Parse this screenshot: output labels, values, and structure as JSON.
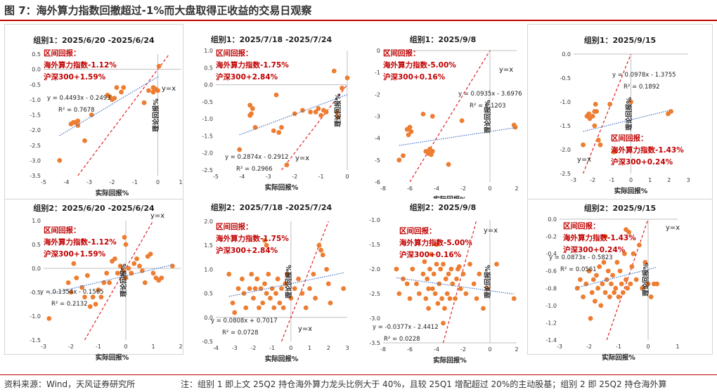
{
  "figure_title": "图 7：海外算力指数回撤超过-1%而大盘取得正收益的交易日观察",
  "source": "资料来源：Wind，天风证券研究所",
  "note": "注：组别 1 即上文 25Q2 持仓海外算力龙头比例大于 40%，且较 25Q1 增配超过 20%的主动股基；组别 2 即 25Q2 持仓海外算",
  "colors": {
    "point": "#ed7d31",
    "trend": "#4472c4",
    "diag": "#e02020",
    "annot": "#c00000",
    "rule": "#c00000"
  },
  "chart_data": [
    {
      "type": "scatter",
      "title": "组别1：2025/6/20 -2025/6/24",
      "xlabel": "实际回报%",
      "ylabel": "理论回报%",
      "xlim": [
        -5,
        1
      ],
      "ylim": [
        -3.5,
        0.5
      ],
      "xticks": [
        -5,
        -4,
        -3,
        -2,
        -1,
        0,
        1
      ],
      "yticks": [
        -3.5,
        -3.0,
        -2.5,
        -2.0,
        -1.5,
        -1.0,
        -0.5,
        0.0,
        0.5
      ],
      "annot_title": "区间回报：",
      "annot_line1": "海外算力指数-1.12%",
      "annot_line2": "沪深300+1.59%",
      "eq": "y = 0.4493x - 0.2493",
      "r2": "R² = 0.7678",
      "slope": 0.4493,
      "intercept": -0.2493,
      "yx_label": "y=x",
      "points": [
        [
          -4.3,
          -3.0
        ],
        [
          -3.8,
          -1.8
        ],
        [
          -3.7,
          -1.75
        ],
        [
          -3.6,
          -1.75
        ],
        [
          -3.5,
          -1.7
        ],
        [
          -3.5,
          -1.85
        ],
        [
          -3.2,
          -2.35
        ],
        [
          -2.9,
          -1.5
        ],
        [
          -2.2,
          -0.85
        ],
        [
          -2.1,
          -0.9
        ],
        [
          -2.0,
          -1.0
        ],
        [
          -1.9,
          -0.95
        ],
        [
          -1.8,
          -0.6
        ],
        [
          -1.6,
          -0.75
        ],
        [
          -1.5,
          -0.6
        ],
        [
          -0.6,
          -1.1
        ],
        [
          -0.4,
          -0.7
        ],
        [
          -0.2,
          -0.75
        ],
        [
          -0.1,
          -0.65
        ],
        [
          0.0,
          -0.7
        ],
        [
          -0.2,
          -0.6
        ],
        [
          0.05,
          0.1
        ]
      ]
    },
    {
      "type": "scatter",
      "title": "组别1：2025/7/18 -2025/7/24",
      "xlabel": "实际回报%",
      "ylabel": "理论回报%",
      "xlim": [
        -5,
        0
      ],
      "ylim": [
        -2.5,
        1.0
      ],
      "xticks": [
        -5,
        -4,
        -3,
        -2,
        -1,
        0
      ],
      "yticks": [
        -2.5,
        -2.0,
        -1.5,
        -1.0,
        -0.5,
        0.0,
        0.5,
        1.0
      ],
      "annot_title": "区间回报：",
      "annot_line1": "海外算力指数-1.75%",
      "annot_line2": "沪深300+2.84%",
      "eq": "y = 0.2874x - 0.2912",
      "r2": "R² = 0.2966",
      "slope": 0.2874,
      "intercept": -0.2912,
      "yx_label": "y=x",
      "points": [
        [
          -4.1,
          -1.9
        ],
        [
          -3.7,
          -0.6
        ],
        [
          -3.65,
          -0.85
        ],
        [
          -3.7,
          -0.9
        ],
        [
          -3.6,
          -0.7
        ],
        [
          -3.5,
          -1.25
        ],
        [
          -2.8,
          -1.35
        ],
        [
          -2.7,
          -0.3
        ],
        [
          -2.6,
          -1.4
        ],
        [
          -2.5,
          -1.25
        ],
        [
          -2.3,
          -2.35
        ],
        [
          -2.0,
          -0.85
        ],
        [
          -1.7,
          -0.75
        ],
        [
          -1.4,
          -0.8
        ],
        [
          -1.2,
          -0.8
        ],
        [
          -1.1,
          -0.7
        ],
        [
          -1.0,
          -0.9
        ],
        [
          -0.9,
          -0.75
        ],
        [
          -0.8,
          -0.8
        ],
        [
          -0.5,
          0.4
        ],
        [
          -0.4,
          -0.8
        ],
        [
          -0.35,
          -0.95
        ],
        [
          -0.2,
          -0.1
        ],
        [
          0.0,
          0.2
        ]
      ]
    },
    {
      "type": "scatter",
      "title": "组别1：2025/9/8",
      "xlabel": "实际回报%",
      "ylabel": "理论回报%",
      "xlim": [
        -8,
        2
      ],
      "ylim": [
        -6,
        0
      ],
      "xticks": [
        -8,
        -6,
        -4,
        -2,
        0,
        2
      ],
      "yticks": [
        -6,
        -5,
        -4,
        -3,
        -2,
        -1,
        0
      ],
      "annot_title": "区间回报：",
      "annot_line1": "海外算力指数-5.00%",
      "annot_line2": "沪深300+0.16%",
      "eq": "y = 0.0935x - 3.6976",
      "r2": "R² = 0.1203",
      "slope": 0.0935,
      "intercept": -3.6976,
      "yx_label": "y=x",
      "points": [
        [
          -6.8,
          -5.0
        ],
        [
          -6.5,
          -4.8
        ],
        [
          -6.2,
          -3.6
        ],
        [
          -6.1,
          -3.85
        ],
        [
          -6.0,
          -3.5
        ],
        [
          -5.9,
          -3.7
        ],
        [
          -5.0,
          -2.9
        ],
        [
          -4.8,
          -4.6
        ],
        [
          -4.6,
          -4.7
        ],
        [
          -4.5,
          -4.5
        ],
        [
          -4.4,
          -4.75
        ],
        [
          -4.3,
          -4.6
        ],
        [
          -4.3,
          -3.0
        ],
        [
          -3.1,
          -5.2
        ],
        [
          -2.1,
          -3.2
        ],
        [
          1.8,
          -3.4
        ],
        [
          1.9,
          -3.5
        ]
      ]
    },
    {
      "type": "scatter",
      "title": "组别1：2025/9/15",
      "xlabel": "实际回报%",
      "ylabel": "理论回报%",
      "xlim": [
        -3,
        3
      ],
      "ylim": [
        -2.5,
        0
      ],
      "xticks": [
        -3,
        -2,
        -1,
        0,
        1,
        2,
        3
      ],
      "yticks": [
        -2.5,
        -2.0,
        -1.5,
        -1.0,
        -0.5,
        0.0
      ],
      "annot_title": "区间回报：",
      "annot_line1": "海外算力指数-1.43%",
      "annot_line2": "沪深300+0.24%",
      "eq": "y = 0.0978x - 1.3755",
      "r2": "R² = 0.1892",
      "slope": 0.0978,
      "intercept": -1.3755,
      "yx_label": "y=x",
      "points": [
        [
          -2.5,
          -1.9
        ],
        [
          -2.3,
          -1.3
        ],
        [
          -2.2,
          -1.25
        ],
        [
          -2.15,
          -1.35
        ],
        [
          -2.0,
          -1.3
        ],
        [
          -1.9,
          -1.2
        ],
        [
          -1.9,
          -1.5
        ],
        [
          -1.85,
          -1.05
        ],
        [
          -1.8,
          -1.2
        ],
        [
          -1.7,
          -1.8
        ],
        [
          -1.6,
          -1.9
        ],
        [
          -1.1,
          -1.05
        ],
        [
          -0.9,
          -2.05
        ],
        [
          0.0,
          -1.0
        ],
        [
          1.95,
          -1.25
        ],
        [
          2.1,
          -1.2
        ]
      ]
    },
    {
      "type": "scatter",
      "title": "组别2：2025/6/20 -2025/6/24",
      "xlabel": "实际回报%",
      "ylabel": "理论回报%",
      "xlim": [
        -3,
        2
      ],
      "ylim": [
        -1.5,
        1.0
      ],
      "xticks": [
        -3,
        -2,
        -1,
        0,
        1,
        2
      ],
      "yticks": [
        -1.5,
        -1.0,
        -0.5,
        0.0,
        0.5,
        1.0
      ],
      "annot_title": "区间回报：",
      "annot_line1": "海外算力指数-1.12%",
      "annot_line2": "沪深300+1.59%",
      "eq": "y = 0.1354x - 0.1565",
      "r2": "R² = 0.2132",
      "slope": 0.1354,
      "intercept": -0.1565,
      "yx_label": "y=x",
      "points": [
        [
          -2.8,
          -1.05
        ],
        [
          -2.1,
          -0.3
        ],
        [
          -2.0,
          -0.5
        ],
        [
          -1.9,
          0.1
        ],
        [
          -1.8,
          -0.2
        ],
        [
          -1.6,
          -0.4
        ],
        [
          -1.5,
          -0.6
        ],
        [
          -1.4,
          -0.15
        ],
        [
          -1.3,
          -0.8
        ],
        [
          -1.2,
          -0.6
        ],
        [
          -1.1,
          -0.75
        ],
        [
          -1.0,
          -0.45
        ],
        [
          -0.9,
          -0.6
        ],
        [
          -0.8,
          -0.3
        ],
        [
          -0.7,
          -0.1
        ],
        [
          -0.6,
          -0.3
        ],
        [
          -0.5,
          0.15
        ],
        [
          -0.4,
          0.2
        ],
        [
          -0.3,
          -0.1
        ],
        [
          -0.2,
          0.05
        ],
        [
          -0.1,
          -0.05
        ],
        [
          0.0,
          -0.2
        ],
        [
          0.1,
          0.0
        ],
        [
          0.2,
          -0.1
        ],
        [
          0.3,
          0.1
        ],
        [
          0.4,
          0.2
        ],
        [
          0.5,
          0.05
        ],
        [
          0.6,
          -0.05
        ],
        [
          0.7,
          -0.3
        ],
        [
          0.8,
          0.25
        ],
        [
          0.9,
          0.3
        ],
        [
          1.0,
          -0.1
        ],
        [
          1.1,
          -0.2
        ],
        [
          1.2,
          -0.25
        ],
        [
          1.3,
          -0.2
        ],
        [
          1.7,
          0.05
        ],
        [
          -0.05,
          0.65
        ],
        [
          0.0,
          0.5
        ]
      ]
    },
    {
      "type": "scatter",
      "title": "组别2：2025/7/18 -2025/7/24",
      "xlabel": "实际回报%",
      "ylabel": "理论回报%",
      "xlim": [
        -4,
        3
      ],
      "ylim": [
        -0.5,
        2.0
      ],
      "xticks": [
        -4,
        -3,
        -2,
        -1,
        0,
        1,
        2,
        3
      ],
      "yticks": [
        -0.5,
        0.0,
        0.5,
        1.0,
        1.5,
        2.0
      ],
      "annot_title": "区间回报：",
      "annot_line1": "海外算力指数-1.75%",
      "annot_line2": "沪深300+2.84%",
      "eq": "y = 0.0808x + 0.7017",
      "r2": "R² = 0.0728",
      "slope": 0.0808,
      "intercept": 0.7017,
      "yx_label": "y=x",
      "points": [
        [
          -3.3,
          0.9
        ],
        [
          -3.1,
          0.3
        ],
        [
          -3.0,
          0.1
        ],
        [
          -2.8,
          0.6
        ],
        [
          -2.6,
          0.8
        ],
        [
          -2.5,
          0.5
        ],
        [
          -2.4,
          0.2
        ],
        [
          -2.2,
          0.6
        ],
        [
          -2.1,
          0.9
        ],
        [
          -2.0,
          0.4
        ],
        [
          -1.9,
          0.6
        ],
        [
          -1.8,
          0.8
        ],
        [
          -1.7,
          0.2
        ],
        [
          -1.6,
          0.6
        ],
        [
          -1.5,
          0.3
        ],
        [
          -1.4,
          0.7
        ],
        [
          -1.3,
          0.5
        ],
        [
          -1.2,
          0.9
        ],
        [
          -1.1,
          0.4
        ],
        [
          -1.0,
          0.6
        ],
        [
          -0.9,
          0.2
        ],
        [
          -0.8,
          0.5
        ],
        [
          -0.7,
          0.8
        ],
        [
          -0.6,
          0.3
        ],
        [
          -0.5,
          0.6
        ],
        [
          -0.4,
          0.2
        ],
        [
          -0.3,
          0.7
        ],
        [
          -0.2,
          0.9
        ],
        [
          0.0,
          0.4
        ],
        [
          0.2,
          0.6
        ],
        [
          0.4,
          0.8
        ],
        [
          0.6,
          0.5
        ],
        [
          0.8,
          0.2
        ],
        [
          1.0,
          0.6
        ],
        [
          1.2,
          0.9
        ],
        [
          1.3,
          0.4
        ],
        [
          1.5,
          1.5
        ],
        [
          1.6,
          1.4
        ],
        [
          1.7,
          1.3
        ],
        [
          1.9,
          1.0
        ],
        [
          2.0,
          0.7
        ],
        [
          2.1,
          0.3
        ],
        [
          2.8,
          0.6
        ],
        [
          -1.3,
          1.5
        ],
        [
          -1.4,
          1.6
        ]
      ]
    },
    {
      "type": "scatter",
      "title": "组别2：2025/9/8",
      "xlabel": "实际回报%",
      "ylabel": "理论回报%",
      "xlim": [
        -8,
        2
      ],
      "ylim": [
        -3.5,
        -1.0
      ],
      "xticks": [
        -8,
        -6,
        -4,
        -2,
        0,
        2
      ],
      "yticks": [
        -3.5,
        -3.0,
        -2.5,
        -2.0,
        -1.5,
        -1.0
      ],
      "annot_title": "区间回报：",
      "annot_line1": "海外算力指数-5.00%",
      "annot_line2": "沪深300+0.16%",
      "eq": "y = -0.0377x - 2.4412",
      "r2": "R² = 0.0228",
      "slope": -0.0377,
      "intercept": -2.4412,
      "yx_label": "y=x",
      "points": [
        [
          -7.0,
          -2.0
        ],
        [
          -6.8,
          -2.5
        ],
        [
          -6.5,
          -2.2
        ],
        [
          -6.2,
          -2.3
        ],
        [
          -6.0,
          -2.6
        ],
        [
          -5.8,
          -2.0
        ],
        [
          -5.5,
          -2.3
        ],
        [
          -5.3,
          -2.5
        ],
        [
          -5.0,
          -2.1
        ],
        [
          -4.9,
          -1.85
        ],
        [
          -4.8,
          -2.6
        ],
        [
          -4.7,
          -2.2
        ],
        [
          -4.6,
          -2.8
        ],
        [
          -4.5,
          -2.0
        ],
        [
          -4.4,
          -1.7
        ],
        [
          -4.3,
          -2.4
        ],
        [
          -4.2,
          -2.1
        ],
        [
          -4.1,
          -2.5
        ],
        [
          -4.0,
          -1.9
        ],
        [
          -3.9,
          -2.7
        ],
        [
          -3.8,
          -2.3
        ],
        [
          -3.7,
          -2.0
        ],
        [
          -3.6,
          -2.6
        ],
        [
          -3.5,
          -1.9
        ],
        [
          -3.4,
          -2.8
        ],
        [
          -3.3,
          -2.2
        ],
        [
          -3.2,
          -2.5
        ],
        [
          -3.1,
          -2.1
        ],
        [
          -3.0,
          -2.6
        ],
        [
          -2.9,
          -2.0
        ],
        [
          -2.8,
          -2.3
        ],
        [
          -2.6,
          -2.6
        ],
        [
          -2.5,
          -2.2
        ],
        [
          -2.3,
          -1.95
        ],
        [
          -2.2,
          -2.4
        ],
        [
          -2.0,
          -2.1
        ],
        [
          -1.8,
          -2.5
        ],
        [
          -1.5,
          -1.9
        ],
        [
          -1.2,
          -2.3
        ],
        [
          -1.0,
          -2.6
        ],
        [
          -0.8,
          -2.1
        ],
        [
          -0.5,
          -2.8
        ],
        [
          -0.2,
          -2.4
        ],
        [
          0.5,
          -1.9
        ],
        [
          1.8,
          -2.6
        ],
        [
          -4.0,
          -1.5
        ],
        [
          -3.5,
          -3.1
        ],
        [
          -2.4,
          -2.0
        ],
        [
          -4.6,
          -2.4
        ]
      ]
    },
    {
      "type": "scatter",
      "title": "组别2：2025/9/15",
      "xlabel": "实际回报%",
      "ylabel": "理论回报%",
      "xlim": [
        -3,
        1
      ],
      "ylim": [
        -1.4,
        0.0
      ],
      "xticks": [
        -3,
        -2,
        -1,
        0,
        1
      ],
      "yticks": [
        -1.4,
        -1.2,
        -1.0,
        -0.8,
        -0.6,
        -0.4,
        -0.2,
        0.0
      ],
      "annot_title": "区间回报：",
      "annot_line1": "海外算力指数-1.43%",
      "annot_line2": "沪深300+0.24%",
      "eq": "y = 0.0873x - 0.5823",
      "r2": "R² = 0.0561",
      "slope": 0.0873,
      "intercept": -0.5823,
      "yx_label": "y=x",
      "points": [
        [
          -2.4,
          -0.8
        ],
        [
          -2.3,
          -0.7
        ],
        [
          -2.2,
          -0.9
        ],
        [
          -2.1,
          -0.75
        ],
        [
          -2.0,
          -0.6
        ],
        [
          -1.95,
          -1.15
        ],
        [
          -1.9,
          -0.85
        ],
        [
          -1.85,
          -0.7
        ],
        [
          -1.8,
          -0.95
        ],
        [
          -1.75,
          -0.65
        ],
        [
          -1.7,
          -0.8
        ],
        [
          -1.65,
          -0.55
        ],
        [
          -1.6,
          -1.0
        ],
        [
          -1.55,
          -0.75
        ],
        [
          -1.5,
          -0.5
        ],
        [
          -1.45,
          -0.85
        ],
        [
          -1.4,
          -0.7
        ],
        [
          -1.35,
          -0.6
        ],
        [
          -1.3,
          -0.9
        ],
        [
          -1.25,
          -0.75
        ],
        [
          -1.2,
          -0.65
        ],
        [
          -1.15,
          -0.85
        ],
        [
          -1.1,
          -0.8
        ],
        [
          -1.05,
          -0.5
        ],
        [
          -1.0,
          -0.9
        ],
        [
          -0.95,
          -0.6
        ],
        [
          -0.9,
          -0.75
        ],
        [
          -0.85,
          -0.85
        ],
        [
          -0.8,
          -0.4
        ],
        [
          -0.75,
          -0.7
        ],
        [
          -0.7,
          -0.8
        ],
        [
          -0.65,
          -0.15
        ],
        [
          -0.6,
          -0.75
        ],
        [
          -0.55,
          -0.55
        ],
        [
          -0.5,
          -0.4
        ],
        [
          -0.4,
          -0.7
        ],
        [
          -0.3,
          -0.3
        ],
        [
          -0.2,
          -0.8
        ],
        [
          -0.1,
          -0.5
        ],
        [
          0.0,
          -0.75
        ],
        [
          0.1,
          -0.9
        ],
        [
          0.2,
          -0.75
        ],
        [
          0.3,
          -0.75
        ],
        [
          -0.75,
          -0.12
        ],
        [
          -1.45,
          -0.2
        ]
      ]
    }
  ]
}
